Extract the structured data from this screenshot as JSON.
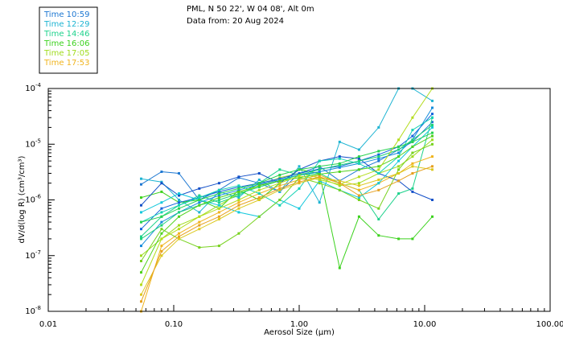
{
  "chart_data": {
    "type": "line",
    "title": "PML, N 50 22', W 04 08', Alt 0m",
    "subtitle": "Data from: 20 Aug 2024",
    "xlabel": "Aerosol Size (μm)",
    "ylabel": "dV/d(log R) (cm³/cm³)",
    "xscale": "log",
    "yscale": "log",
    "xlim": [
      0.01,
      100
    ],
    "ylim": [
      1e-08,
      0.0001
    ],
    "xticks": [
      {
        "value": 0.01,
        "label": "0.01"
      },
      {
        "value": 0.1,
        "label": "0.10"
      },
      {
        "value": 1,
        "label": "1.00"
      },
      {
        "value": 10,
        "label": "10.00"
      },
      {
        "value": 100,
        "label": "100.00"
      }
    ],
    "yticks": [
      {
        "value": 1e-08,
        "base": "10",
        "exp": "-8"
      },
      {
        "value": 1e-07,
        "base": "10",
        "exp": "-7"
      },
      {
        "value": 1e-06,
        "base": "10",
        "exp": "-6"
      },
      {
        "value": 1e-05,
        "base": "10",
        "exp": "-5"
      },
      {
        "value": 0.0001,
        "base": "10",
        "exp": "-4"
      }
    ],
    "x": [
      0.055,
      0.08,
      0.11,
      0.16,
      0.23,
      0.33,
      0.48,
      0.7,
      1.0,
      1.45,
      2.1,
      3.0,
      4.3,
      6.2,
      8.0,
      11.5
    ],
    "series": [
      {
        "name": "Time 10:59",
        "color": "#1e78d2",
        "values": [
          1.9e-06,
          3.2e-06,
          3e-06,
          1e-06,
          1.5e-06,
          2.5e-06,
          2e-06,
          1.4e-06,
          3e-06,
          4e-06,
          2.2e-06,
          3.5e-06,
          5e-06,
          8e-06,
          1.1e-05,
          2.5e-05
        ]
      },
      {
        "name": "Time 12:29",
        "color": "#1eb4d2",
        "values": [
          2.4e-06,
          2.1e-06,
          1e-06,
          6e-07,
          1.4e-06,
          1.1e-06,
          2.3e-06,
          1.4e-06,
          4e-06,
          9e-07,
          1.1e-05,
          8e-06,
          2e-05,
          0.0001,
          0.0001,
          6e-05
        ]
      },
      {
        "name": "Time 14:46",
        "color": "#1ed28c",
        "values": [
          2.2e-07,
          5e-07,
          8e-07,
          1.2e-06,
          9e-07,
          1.2e-06,
          2e-06,
          3.5e-06,
          2.8e-06,
          3e-06,
          2e-06,
          1.5e-06,
          4.5e-07,
          1.3e-06,
          1.6e-06,
          3e-05
        ]
      },
      {
        "name": "Time 16:06",
        "color": "#3cd21e",
        "values": [
          1.1e-06,
          1.4e-06,
          9e-07,
          1e-06,
          7e-07,
          1.5e-06,
          1e-06,
          2e-06,
          3.5e-06,
          3e-06,
          6e-08,
          5e-07,
          2.3e-07,
          2e-07,
          2e-07,
          5e-07
        ]
      },
      {
        "name": "Time 17:05",
        "color": "#a0dc1e",
        "values": [
          1e-07,
          2e-07,
          3.5e-07,
          5e-07,
          8e-07,
          1.3e-06,
          1.8e-06,
          2.5e-06,
          3e-06,
          2.5e-06,
          1.8e-06,
          2e-06,
          3e-06,
          4e-06,
          6e-06,
          1.2e-05
        ]
      },
      {
        "name": "Time 17:53",
        "color": "#f0b41e",
        "values": [
          1e-08,
          1.5e-07,
          2.5e-07,
          4e-07,
          6e-07,
          9e-07,
          1.3e-06,
          1.8e-06,
          2.3e-06,
          2.8e-06,
          2e-06,
          1.5e-06,
          2e-06,
          3e-06,
          4.5e-06,
          6e-06
        ]
      },
      {
        "name": "",
        "color": "#1450c8",
        "values": [
          8e-07,
          2e-06,
          1.2e-06,
          1.6e-06,
          2e-06,
          2.6e-06,
          3e-06,
          2e-06,
          3.5e-06,
          5e-06,
          6e-06,
          5.5e-06,
          3e-06,
          2.2e-06,
          1.4e-06,
          1e-06
        ]
      },
      {
        "name": "",
        "color": "#1464dc",
        "values": [
          3e-07,
          7e-07,
          9e-07,
          1.1e-06,
          1.4e-06,
          1.7e-06,
          2e-06,
          2.4e-06,
          3e-06,
          3.6e-06,
          4e-06,
          5e-06,
          6.5e-06,
          9e-06,
          1.4e-05,
          3.5e-05
        ]
      },
      {
        "name": "",
        "color": "#148cdc",
        "values": [
          1.5e-07,
          4e-07,
          6e-07,
          9e-07,
          1.2e-06,
          1.5e-06,
          1.9e-06,
          2.3e-06,
          2.8e-06,
          3.2e-06,
          3.8e-06,
          4.5e-06,
          5.5e-06,
          7e-06,
          1.2e-05,
          4.5e-05
        ]
      },
      {
        "name": "",
        "color": "#14c8dc",
        "values": [
          6e-07,
          9e-07,
          1.3e-06,
          1e-06,
          8e-07,
          6e-07,
          5e-07,
          1e-06,
          7e-07,
          2.2e-06,
          1.5e-06,
          1.1e-06,
          2e-06,
          5e-06,
          9e-06,
          2e-05
        ]
      },
      {
        "name": "",
        "color": "#14d2b4",
        "values": [
          4e-07,
          6e-07,
          8e-07,
          1.1e-06,
          1.5e-06,
          1.8e-06,
          1.3e-06,
          8e-07,
          1.6e-06,
          5e-06,
          5.5e-06,
          4.5e-06,
          3e-06,
          6e-06,
          1.8e-05,
          3e-05
        ]
      },
      {
        "name": "",
        "color": "#1ed278",
        "values": [
          2e-07,
          3.5e-07,
          6e-07,
          8e-07,
          1e-06,
          1.3e-06,
          1.7e-06,
          2.2e-06,
          2.8e-06,
          3.5e-06,
          4.2e-06,
          5e-06,
          6e-06,
          8e-06,
          1.2e-05,
          2.2e-05
        ]
      },
      {
        "name": "",
        "color": "#28d250",
        "values": [
          4e-07,
          5e-07,
          7e-07,
          1e-06,
          1.3e-06,
          1.6e-06,
          2e-06,
          2.8e-06,
          3.5e-06,
          4e-06,
          4.5e-06,
          6e-06,
          7.5e-06,
          9e-06,
          1.1e-05,
          1.6e-05
        ]
      },
      {
        "name": "",
        "color": "#50d21e",
        "values": [
          5e-08,
          2.5e-07,
          5e-07,
          8e-07,
          1.1e-06,
          1.4e-06,
          1.8e-06,
          2.2e-06,
          2.5e-06,
          2.9e-06,
          3.2e-06,
          3.5e-06,
          4e-06,
          6e-06,
          9e-06,
          1.4e-05
        ]
      },
      {
        "name": "",
        "color": "#78d21e",
        "values": [
          8e-08,
          3e-07,
          2e-07,
          1.4e-07,
          1.5e-07,
          2.5e-07,
          5e-07,
          1e-06,
          2.5e-06,
          2e-06,
          1.5e-06,
          1e-06,
          7e-07,
          3.5e-06,
          7e-06,
          1e-05
        ]
      },
      {
        "name": "",
        "color": "#b4dc1e",
        "values": [
          3e-08,
          2e-07,
          3e-07,
          5e-07,
          7e-07,
          1e-06,
          1.5e-06,
          2e-06,
          2.7e-06,
          2.3e-06,
          1.9e-06,
          2.6e-06,
          3.5e-06,
          1.2e-05,
          3e-05,
          0.0001
        ]
      },
      {
        "name": "",
        "color": "#dcc81e",
        "values": [
          2e-08,
          1e-07,
          2e-07,
          3e-07,
          4.5e-07,
          7e-07,
          1e-06,
          1.5e-06,
          2e-06,
          2.5e-06,
          2.2e-06,
          1.8e-06,
          2.3e-06,
          3e-06,
          4e-06,
          3.5e-06
        ]
      },
      {
        "name": "",
        "color": "#e6a01e",
        "values": [
          1.5e-08,
          1.2e-07,
          2.2e-07,
          3.5e-07,
          5e-07,
          8e-07,
          1.1e-06,
          1.6e-06,
          2.1e-06,
          2.6e-06,
          2e-06,
          1.2e-06,
          1.5e-06,
          2.2e-06,
          3e-06,
          4e-06
        ]
      }
    ]
  }
}
